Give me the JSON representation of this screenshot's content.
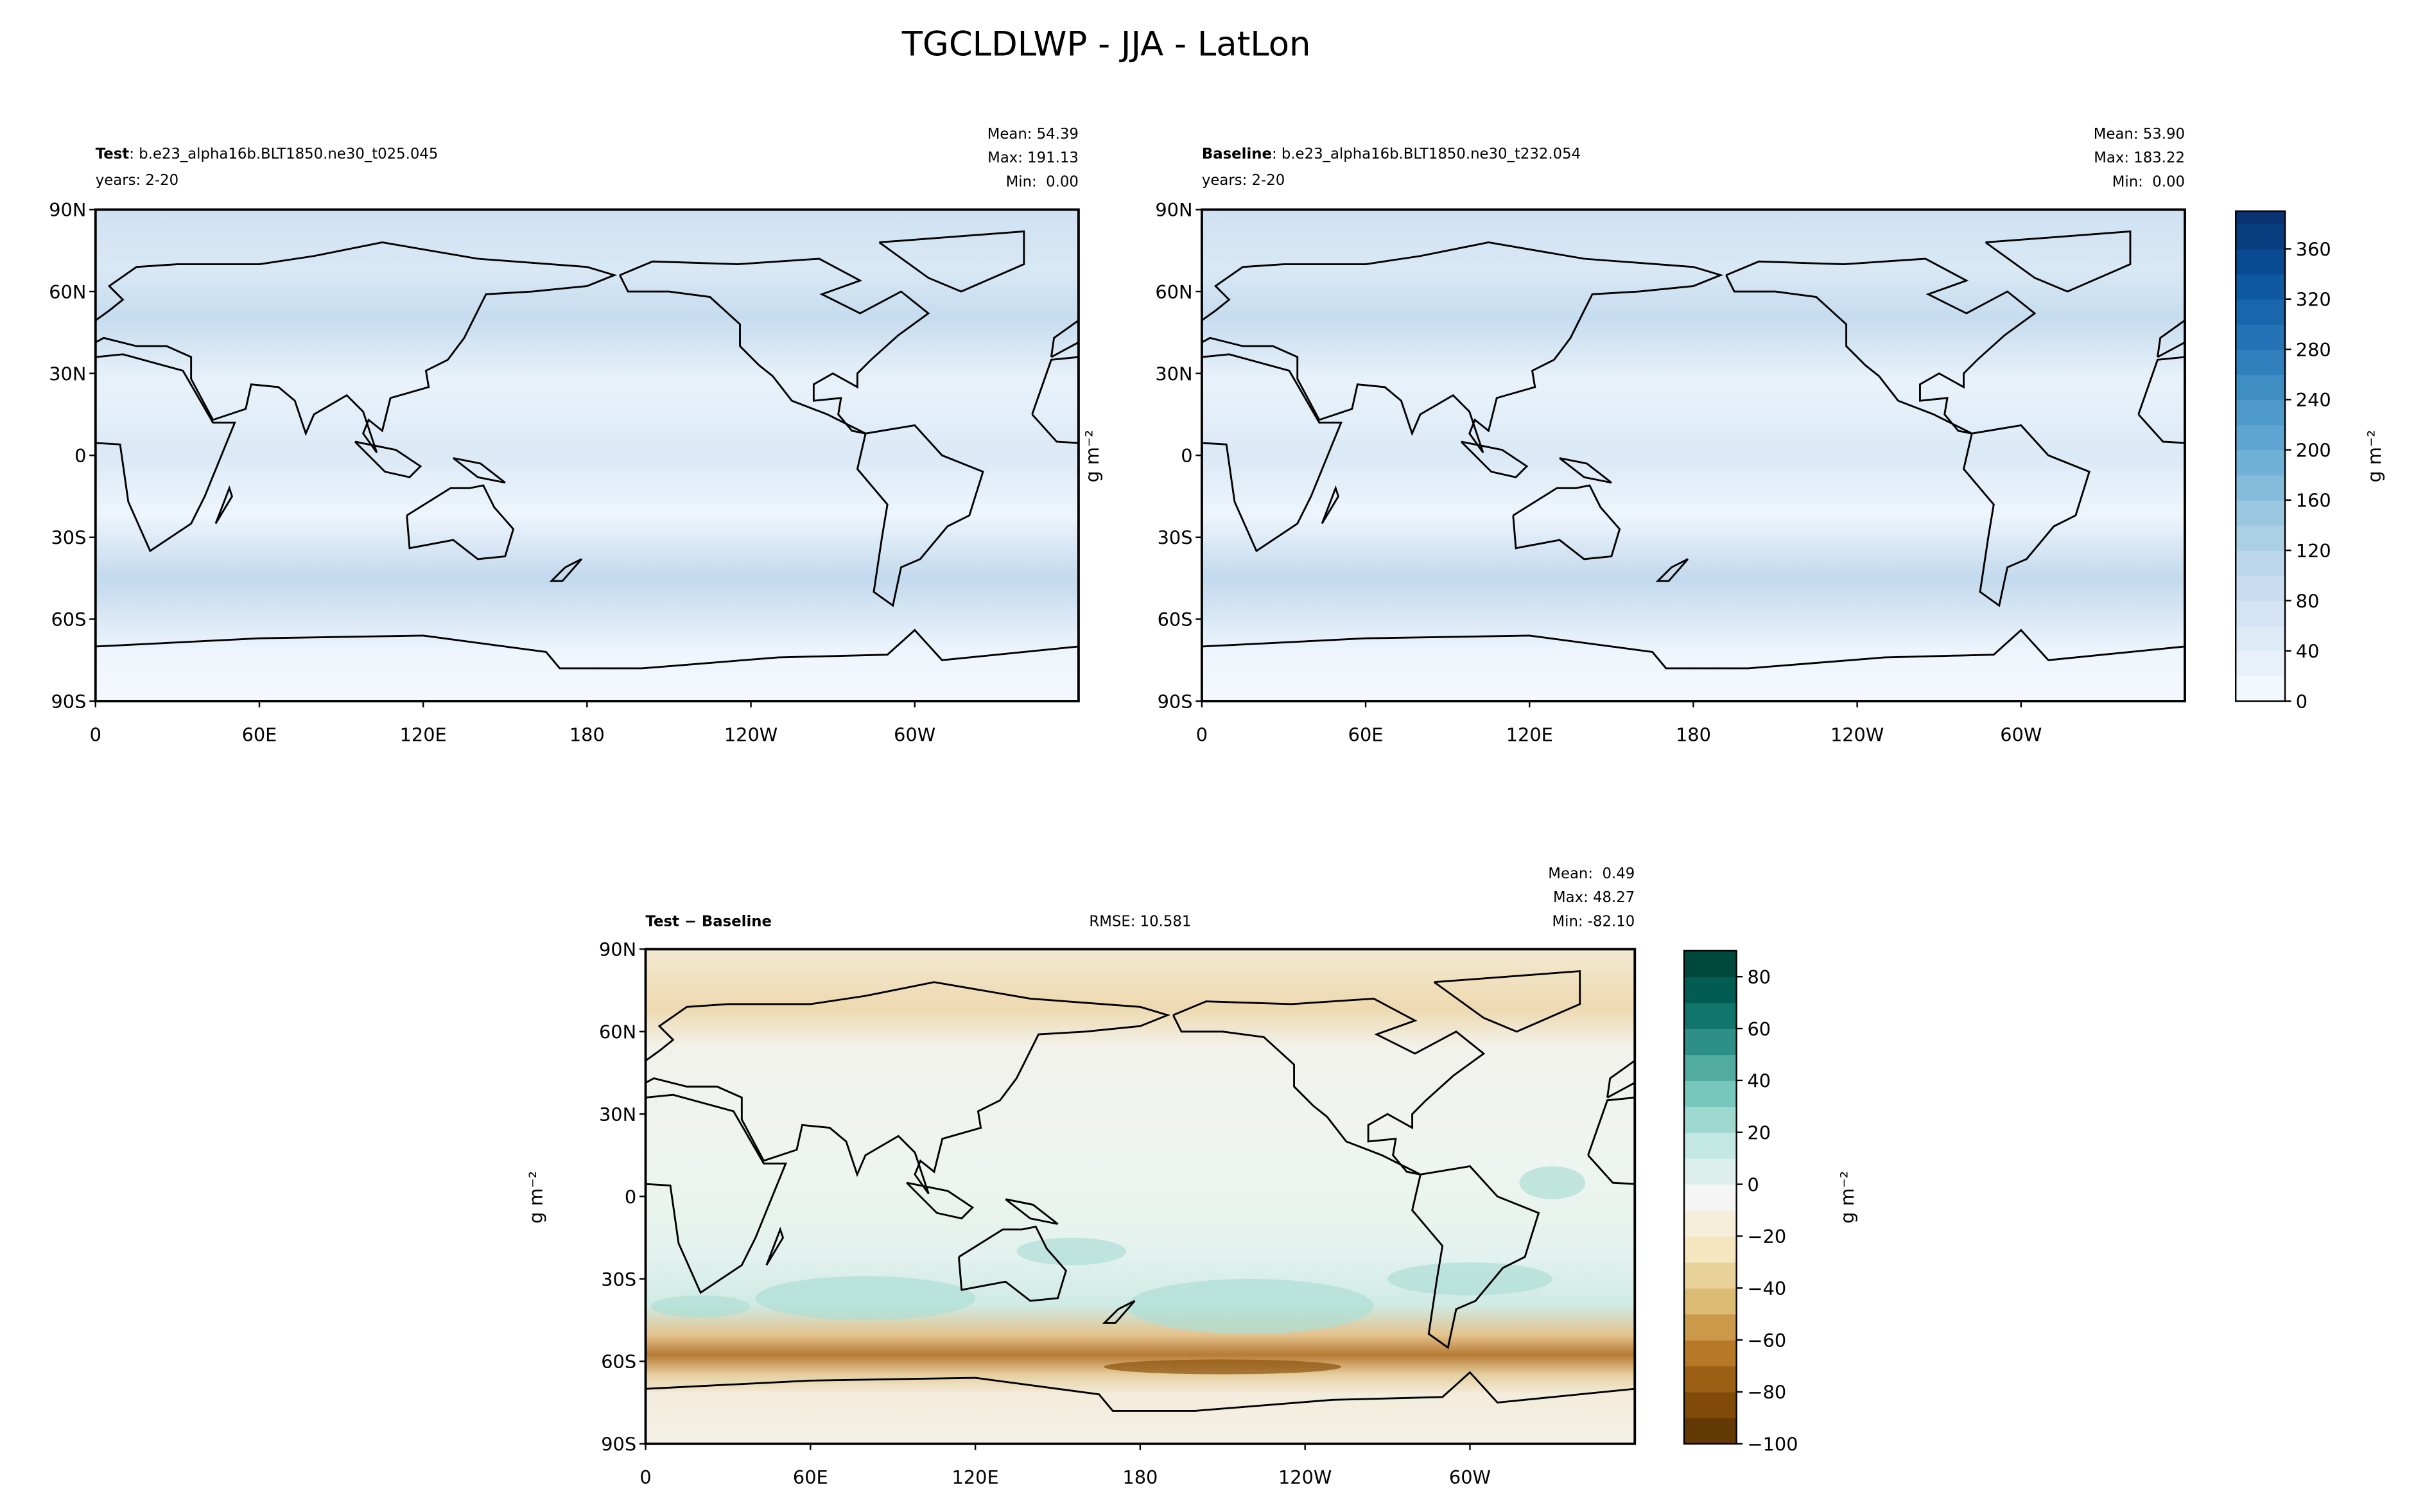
{
  "title": "TGCLDLWP - JJA - LatLon",
  "maps": {
    "xlim": [
      0,
      360
    ],
    "ylim": [
      -90,
      90
    ],
    "xticks": [
      0,
      {
        "value": 60,
        "label": "60E"
      },
      {
        "value": 120,
        "label": "120E"
      },
      180,
      {
        "value": 240,
        "label": "120W"
      },
      {
        "value": 300,
        "label": "60W"
      }
    ],
    "yticks": [
      {
        "value": -90,
        "label": "90S"
      },
      {
        "value": -60,
        "label": "60S"
      },
      {
        "value": -30,
        "label": "30S"
      },
      0,
      {
        "value": 30,
        "label": "30N"
      },
      {
        "value": 60,
        "label": "60N"
      },
      {
        "value": 90,
        "label": "90N"
      }
    ]
  },
  "panels": [
    {
      "name": "Test",
      "case": ": b.e23_alpha16b.BLT1850.ne30_t025.045",
      "years": "years: 2-20",
      "stats": [
        "Mean: 54.39",
        "Max: 191.13",
        "Min:  0.00"
      ]
    },
    {
      "name": "Baseline",
      "case": ": b.e23_alpha16b.BLT1850.ne30_t232.054",
      "years": "years: 2-20",
      "stats": [
        "Mean: 53.90",
        "Max: 183.22",
        "Min:  0.00"
      ]
    },
    {
      "name": "Test − Baseline",
      "rmse": "RMSE: 10.581",
      "stats": [
        "Mean:  0.49",
        "Max: 48.27",
        "Min: -82.10"
      ]
    }
  ],
  "colorbars": [
    {
      "label": "g m⁻²",
      "ylim": [
        0,
        390
      ],
      "yticks": [
        0,
        40,
        80,
        120,
        160,
        200,
        240,
        280,
        320,
        360
      ]
    },
    {
      "label": "g m⁻²",
      "ylim": [
        -100,
        90
      ],
      "yticks": [
        {
          "value": -100,
          "label": "−100"
        },
        {
          "value": -80,
          "label": "−80"
        },
        {
          "value": -60,
          "label": "−60"
        },
        {
          "value": -40,
          "label": "−40"
        },
        {
          "value": -20,
          "label": "−20"
        },
        0,
        20,
        40,
        60,
        80
      ]
    }
  ]
}
